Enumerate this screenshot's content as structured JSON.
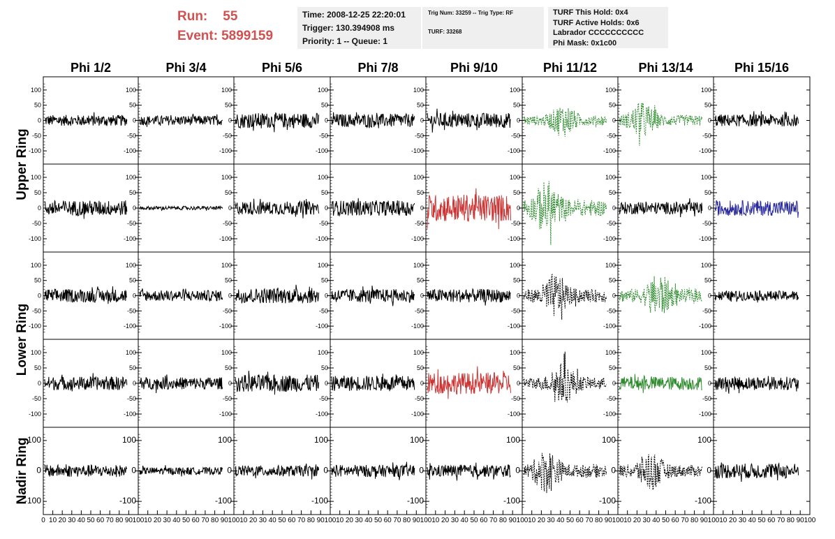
{
  "header": {
    "run_label": "Run:",
    "run_value": "55",
    "event_label": "Event:",
    "event_value": "5899159",
    "time": "Time: 2008-12-25 22:20:01",
    "trigger": "Trigger: 130.394908 ms",
    "priority": "Priority: 1 -- Queue: 1",
    "trig_num": "Trig Num: 33259 -- Trig Type: RF",
    "turf": "TURF: 33268",
    "turf_hold": "TURF This Hold: 0x4",
    "turf_active": "TURF Active Holds: 0x6",
    "labrador": "Labrador CCCCCCCCCC",
    "phi_mask": "Phi Mask: 0x1c00"
  },
  "colors": {
    "title_red": "#d15050",
    "box_bg": "#efefef",
    "trace_black": "#000000",
    "trace_green": "#2e8b2e",
    "trace_red": "#cc3333",
    "trace_blue": "#2b2b9e"
  },
  "chart_data": {
    "type": "line",
    "column_labels": [
      "Phi 1/2",
      "Phi 3/4",
      "Phi 5/6",
      "Phi 7/8",
      "Phi 9/10",
      "Phi 11/12",
      "Phi 13/14",
      "Phi 15/16"
    ],
    "ring_labels": [
      {
        "label": "Upper Ring",
        "rows": [
          0,
          1
        ]
      },
      {
        "label": "Lower Ring",
        "rows": [
          2,
          3
        ]
      },
      {
        "label": "Nadir Ring",
        "rows": [
          4
        ]
      }
    ],
    "xlim": [
      0,
      100
    ],
    "ylim": [
      -125,
      125
    ],
    "x_ticks": [
      0,
      10,
      20,
      30,
      40,
      50,
      60,
      70,
      80,
      90,
      100
    ],
    "y_ticks": [
      100,
      50,
      0,
      -50,
      -100
    ],
    "y_ticks_nadir": [
      100,
      0,
      -100
    ],
    "cells": [
      [
        {
          "color": "black",
          "style": "solid",
          "amp": 18
        },
        {
          "color": "black",
          "style": "solid",
          "amp": 16
        },
        {
          "color": "black",
          "style": "solid",
          "amp": 25
        },
        {
          "color": "black",
          "style": "solid",
          "amp": 22
        },
        {
          "color": "black",
          "style": "solid",
          "amp": 25
        },
        {
          "color": "green",
          "style": "dashed",
          "amp": 45
        },
        {
          "color": "green",
          "style": "dashed",
          "amp": 50
        },
        {
          "color": "black",
          "style": "solid",
          "amp": 20
        }
      ],
      [
        {
          "color": "black",
          "style": "solid",
          "amp": 25
        },
        {
          "color": "black",
          "style": "solid",
          "amp": 6
        },
        {
          "color": "black",
          "style": "solid",
          "amp": 22
        },
        {
          "color": "black",
          "style": "solid",
          "amp": 25
        },
        {
          "color": "red",
          "style": "solid",
          "amp": 45
        },
        {
          "color": "green",
          "style": "dashed",
          "amp": 75
        },
        {
          "color": "black",
          "style": "solid",
          "amp": 20
        },
        {
          "color": "blue",
          "style": "solid",
          "amp": 25
        }
      ],
      [
        {
          "color": "black",
          "style": "solid",
          "amp": 22
        },
        {
          "color": "black",
          "style": "solid",
          "amp": 18
        },
        {
          "color": "black",
          "style": "solid",
          "amp": 25
        },
        {
          "color": "black",
          "style": "solid",
          "amp": 22
        },
        {
          "color": "black",
          "style": "solid",
          "amp": 22
        },
        {
          "color": "black",
          "style": "dashed",
          "amp": 60
        },
        {
          "color": "green",
          "style": "dashed",
          "amp": 60
        },
        {
          "color": "black",
          "style": "solid",
          "amp": 16
        }
      ],
      [
        {
          "color": "black",
          "style": "solid",
          "amp": 22
        },
        {
          "color": "black",
          "style": "solid",
          "amp": 20
        },
        {
          "color": "black",
          "style": "solid",
          "amp": 28
        },
        {
          "color": "black",
          "style": "solid",
          "amp": 25
        },
        {
          "color": "red",
          "style": "solid",
          "amp": 35
        },
        {
          "color": "black",
          "style": "dashed",
          "amp": 55
        },
        {
          "color": "green",
          "style": "solid",
          "amp": 22
        },
        {
          "color": "black",
          "style": "solid",
          "amp": 22
        }
      ],
      [
        {
          "color": "black",
          "style": "solid",
          "amp": 20
        },
        {
          "color": "black",
          "style": "solid",
          "amp": 12
        },
        {
          "color": "black",
          "style": "solid",
          "amp": 18
        },
        {
          "color": "black",
          "style": "solid",
          "amp": 20
        },
        {
          "color": "black",
          "style": "solid",
          "amp": 20
        },
        {
          "color": "black",
          "style": "dashed",
          "amp": 60
        },
        {
          "color": "black",
          "style": "dashed",
          "amp": 55
        },
        {
          "color": "black",
          "style": "solid",
          "amp": 25
        }
      ]
    ]
  }
}
